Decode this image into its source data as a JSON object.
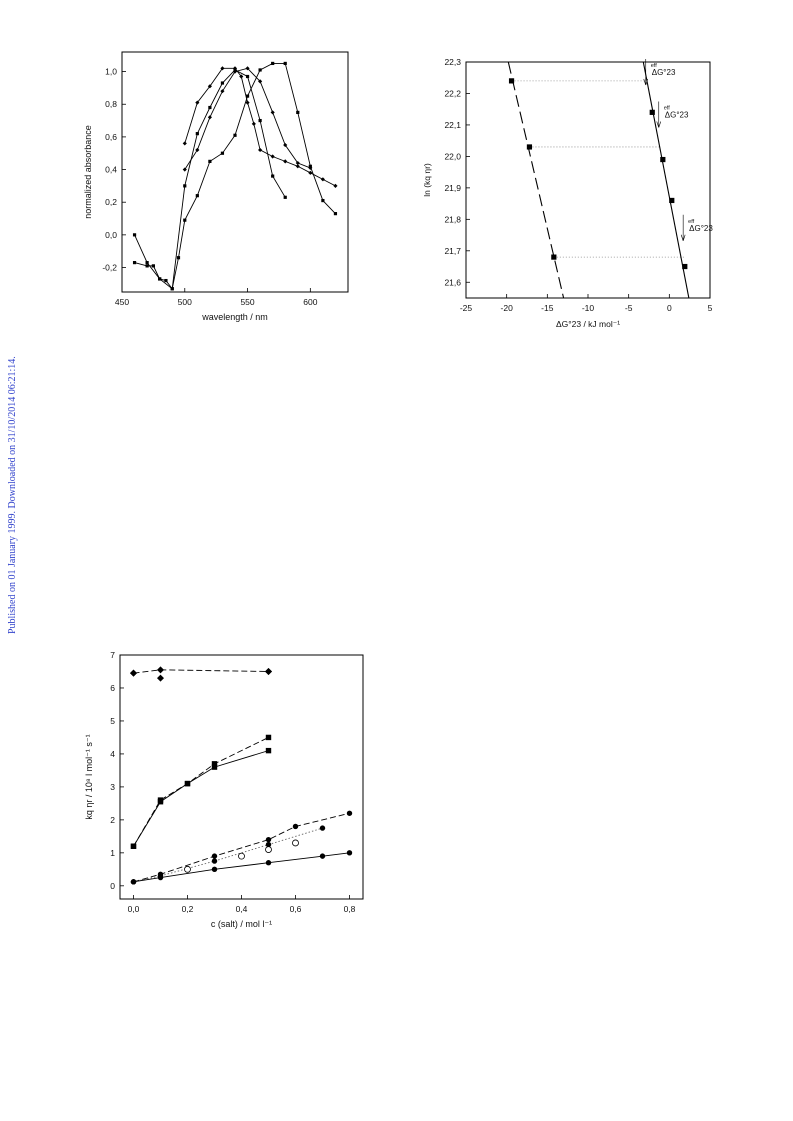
{
  "page": {
    "published_note": "Published on 01 January 1999. Downloaded on 31/10/2014 06:21:14."
  },
  "chart_data": [
    {
      "id": "absorbance",
      "type": "line",
      "xlabel": "wavelength / nm",
      "ylabel": "normalized absorbance",
      "xlim": [
        450,
        630
      ],
      "ylim": [
        -0.35,
        1.12
      ],
      "xticks": [
        450,
        500,
        550,
        600
      ],
      "xtick_labels": [
        "450",
        "500",
        "550",
        "600"
      ],
      "yticks": [
        -0.2,
        0.0,
        0.2,
        0.4,
        0.6,
        0.8,
        1.0
      ],
      "ytick_labels": [
        "-0,2",
        "0,0",
        "0,2",
        "0,4",
        "0,6",
        "0,8",
        "1,0"
      ],
      "grid": false,
      "series": [
        {
          "x": [
            460,
            470,
            480,
            490,
            500,
            510,
            520,
            530,
            540,
            550,
            560,
            570,
            580
          ],
          "y": [
            0.0,
            -0.17,
            -0.27,
            -0.33,
            0.3,
            0.62,
            0.78,
            0.93,
            1.01,
            0.97,
            0.7,
            0.36,
            0.23
          ],
          "marker": "square"
        },
        {
          "x": [
            460,
            470,
            475,
            480,
            485,
            490,
            495,
            500,
            510,
            520,
            530,
            540,
            550,
            560,
            570,
            580,
            590,
            600,
            610,
            620
          ],
          "y": [
            -0.17,
            -0.19,
            -0.19,
            -0.27,
            -0.28,
            -0.33,
            -0.14,
            0.09,
            0.24,
            0.45,
            0.5,
            0.61,
            0.85,
            1.01,
            1.05,
            1.05,
            0.75,
            0.42,
            0.21,
            0.13
          ],
          "marker": "square"
        },
        {
          "x": [
            500,
            510,
            520,
            530,
            540,
            545,
            550,
            555,
            560,
            570,
            580,
            590,
            600,
            610,
            620
          ],
          "y": [
            0.56,
            0.81,
            0.91,
            1.02,
            1.02,
            0.97,
            0.81,
            0.68,
            0.52,
            0.48,
            0.45,
            0.42,
            0.38,
            0.34,
            0.3
          ],
          "marker": "diamond"
        },
        {
          "x": [
            500,
            510,
            520,
            530,
            540,
            550,
            560,
            570,
            580,
            590,
            600
          ],
          "y": [
            0.4,
            0.52,
            0.72,
            0.88,
            1.0,
            1.02,
            0.94,
            0.75,
            0.55,
            0.44,
            0.41
          ],
          "marker": "diamond"
        }
      ]
    },
    {
      "id": "lnkq",
      "type": "scatter",
      "xlabel": "ΔG°23 / kJ mol⁻¹",
      "ylabel": "ln (kq ηr)",
      "xlim": [
        -25,
        5
      ],
      "ylim": [
        21.55,
        22.3
      ],
      "xticks": [
        -25,
        -20,
        -15,
        -10,
        -5,
        0,
        5
      ],
      "xtick_labels": [
        "-25",
        "-20",
        "-15",
        "-10",
        "-5",
        "0",
        "5"
      ],
      "yticks": [
        21.6,
        21.7,
        21.8,
        21.9,
        22.0,
        22.1,
        22.2,
        22.3
      ],
      "ytick_labels": [
        "21,6",
        "21,7",
        "21,8",
        "21,9",
        "22,0",
        "22,1",
        "22,2",
        "22,3"
      ],
      "grid": false,
      "left_points": {
        "x": [
          -19.4,
          -17.2,
          -14.2
        ],
        "y": [
          22.24,
          22.03,
          21.68
        ]
      },
      "left_line": {
        "x": [
          -19.8,
          -13.0
        ],
        "y": [
          22.3,
          21.55
        ]
      },
      "right_points": {
        "x": [
          -2.1,
          -0.8,
          0.3,
          1.9
        ],
        "y": [
          22.14,
          21.99,
          21.86,
          21.65
        ]
      },
      "right_line": {
        "x": [
          -3.2,
          2.4
        ],
        "y": [
          22.3,
          21.55
        ]
      },
      "dotted_links": [
        {
          "x": [
            -19.4,
            -3.0
          ],
          "y": [
            22.24,
            22.24
          ]
        },
        {
          "x": [
            -17.2,
            -1.1
          ],
          "y": [
            22.03,
            22.03
          ]
        },
        {
          "x": [
            -14.2,
            1.9
          ],
          "y": [
            21.68,
            21.68
          ]
        }
      ],
      "annotation_labels": [
        "eff",
        "ΔG°23"
      ],
      "annotations": [
        {
          "x": -2.9,
          "y": 22.265
        },
        {
          "x": -1.3,
          "y": 22.13
        },
        {
          "x": 1.7,
          "y": 21.77
        }
      ]
    },
    {
      "id": "kq_salt",
      "type": "line",
      "xlabel": "c (salt) / mol l⁻¹",
      "ylabel": "kq ηr / 10⁸ l mol⁻¹ s⁻¹",
      "xlim": [
        -0.05,
        0.85
      ],
      "ylim": [
        -0.4,
        7
      ],
      "xticks": [
        0.0,
        0.2,
        0.4,
        0.6,
        0.8
      ],
      "xtick_labels": [
        "0,0",
        "0,2",
        "0,4",
        "0,6",
        "0,8"
      ],
      "yticks": [
        0,
        1,
        2,
        3,
        4,
        5,
        6,
        7
      ],
      "ytick_labels": [
        "0",
        "1",
        "2",
        "3",
        "4",
        "5",
        "6",
        "7"
      ],
      "grid": false,
      "series": [
        {
          "x": [
            0.0,
            0.1,
            0.5
          ],
          "y": [
            6.45,
            6.55,
            6.5
          ],
          "marker": "diamond",
          "line": "dashed"
        },
        {
          "x": [
            0.0,
            0.1,
            0.5
          ],
          "y": [
            6.45,
            6.3,
            6.5
          ],
          "marker": "diamond",
          "line": "none"
        },
        {
          "x": [
            0.0,
            0.1,
            0.2,
            0.3,
            0.5
          ],
          "y": [
            1.2,
            2.6,
            3.1,
            3.7,
            4.5
          ],
          "marker": "square",
          "line": "dashed"
        },
        {
          "x": [
            0.0,
            0.1,
            0.2,
            0.3,
            0.5
          ],
          "y": [
            1.2,
            2.55,
            3.1,
            3.6,
            4.1
          ],
          "marker": "square",
          "line": "solid"
        },
        {
          "x": [
            0.0,
            0.1,
            0.3,
            0.5,
            0.6,
            0.8
          ],
          "y": [
            0.12,
            0.35,
            0.9,
            1.4,
            1.8,
            2.2
          ],
          "marker": "circle",
          "line": "dashed"
        },
        {
          "x": [
            0.0,
            0.1,
            0.3,
            0.5,
            0.7
          ],
          "y": [
            0.12,
            0.3,
            0.75,
            1.25,
            1.75
          ],
          "marker": "circle",
          "line": "dotted"
        },
        {
          "x": [
            0.2,
            0.4,
            0.5,
            0.6
          ],
          "y": [
            0.5,
            0.9,
            1.1,
            1.3
          ],
          "marker": "open-circle",
          "line": "none"
        },
        {
          "x": [
            0.0,
            0.1,
            0.3,
            0.5,
            0.7,
            0.8
          ],
          "y": [
            0.12,
            0.25,
            0.5,
            0.7,
            0.9,
            1.0
          ],
          "marker": "circle",
          "line": "solid"
        }
      ]
    }
  ]
}
